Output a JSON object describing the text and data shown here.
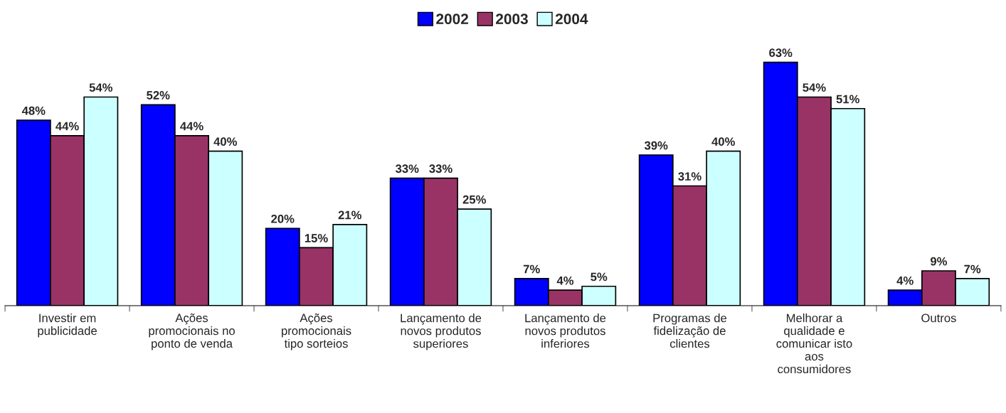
{
  "chart_data": {
    "type": "bar",
    "categories": [
      "Investir em\npublicidade",
      "Ações\npromocionais no\nponto de venda",
      "Ações\npromocionais\ntipo sorteios",
      "Lançamento de\nnovos produtos\nsuperiores",
      "Lançamento de\nnovos produtos\ninferiores",
      "Programas de\nfidelização de\nclientes",
      "Melhorar a\nqualidade e\ncomunicar isto\naos\nconsumidores",
      "Outros"
    ],
    "series": [
      {
        "name": "2002",
        "color": "#0000ff",
        "values": [
          48,
          52,
          20,
          33,
          7,
          39,
          63,
          4
        ],
        "value_labels": [
          "48%",
          "52%",
          "20%",
          "33%",
          "7%",
          "39%",
          "63%",
          "4%"
        ]
      },
      {
        "name": "2003",
        "color": "#993366",
        "values": [
          44,
          44,
          15,
          33,
          4,
          31,
          54,
          9
        ],
        "value_labels": [
          "44%",
          "44%",
          "15%",
          "33%",
          "4%",
          "31%",
          "54%",
          "9%"
        ]
      },
      {
        "name": "2004",
        "color": "#ccffff",
        "values": [
          54,
          40,
          21,
          25,
          5,
          40,
          51,
          7
        ],
        "value_labels": [
          "54%",
          "40%",
          "21%",
          "25%",
          "5%",
          "40%",
          "51%",
          "7%"
        ]
      }
    ],
    "legend": "top",
    "grid": false
  }
}
